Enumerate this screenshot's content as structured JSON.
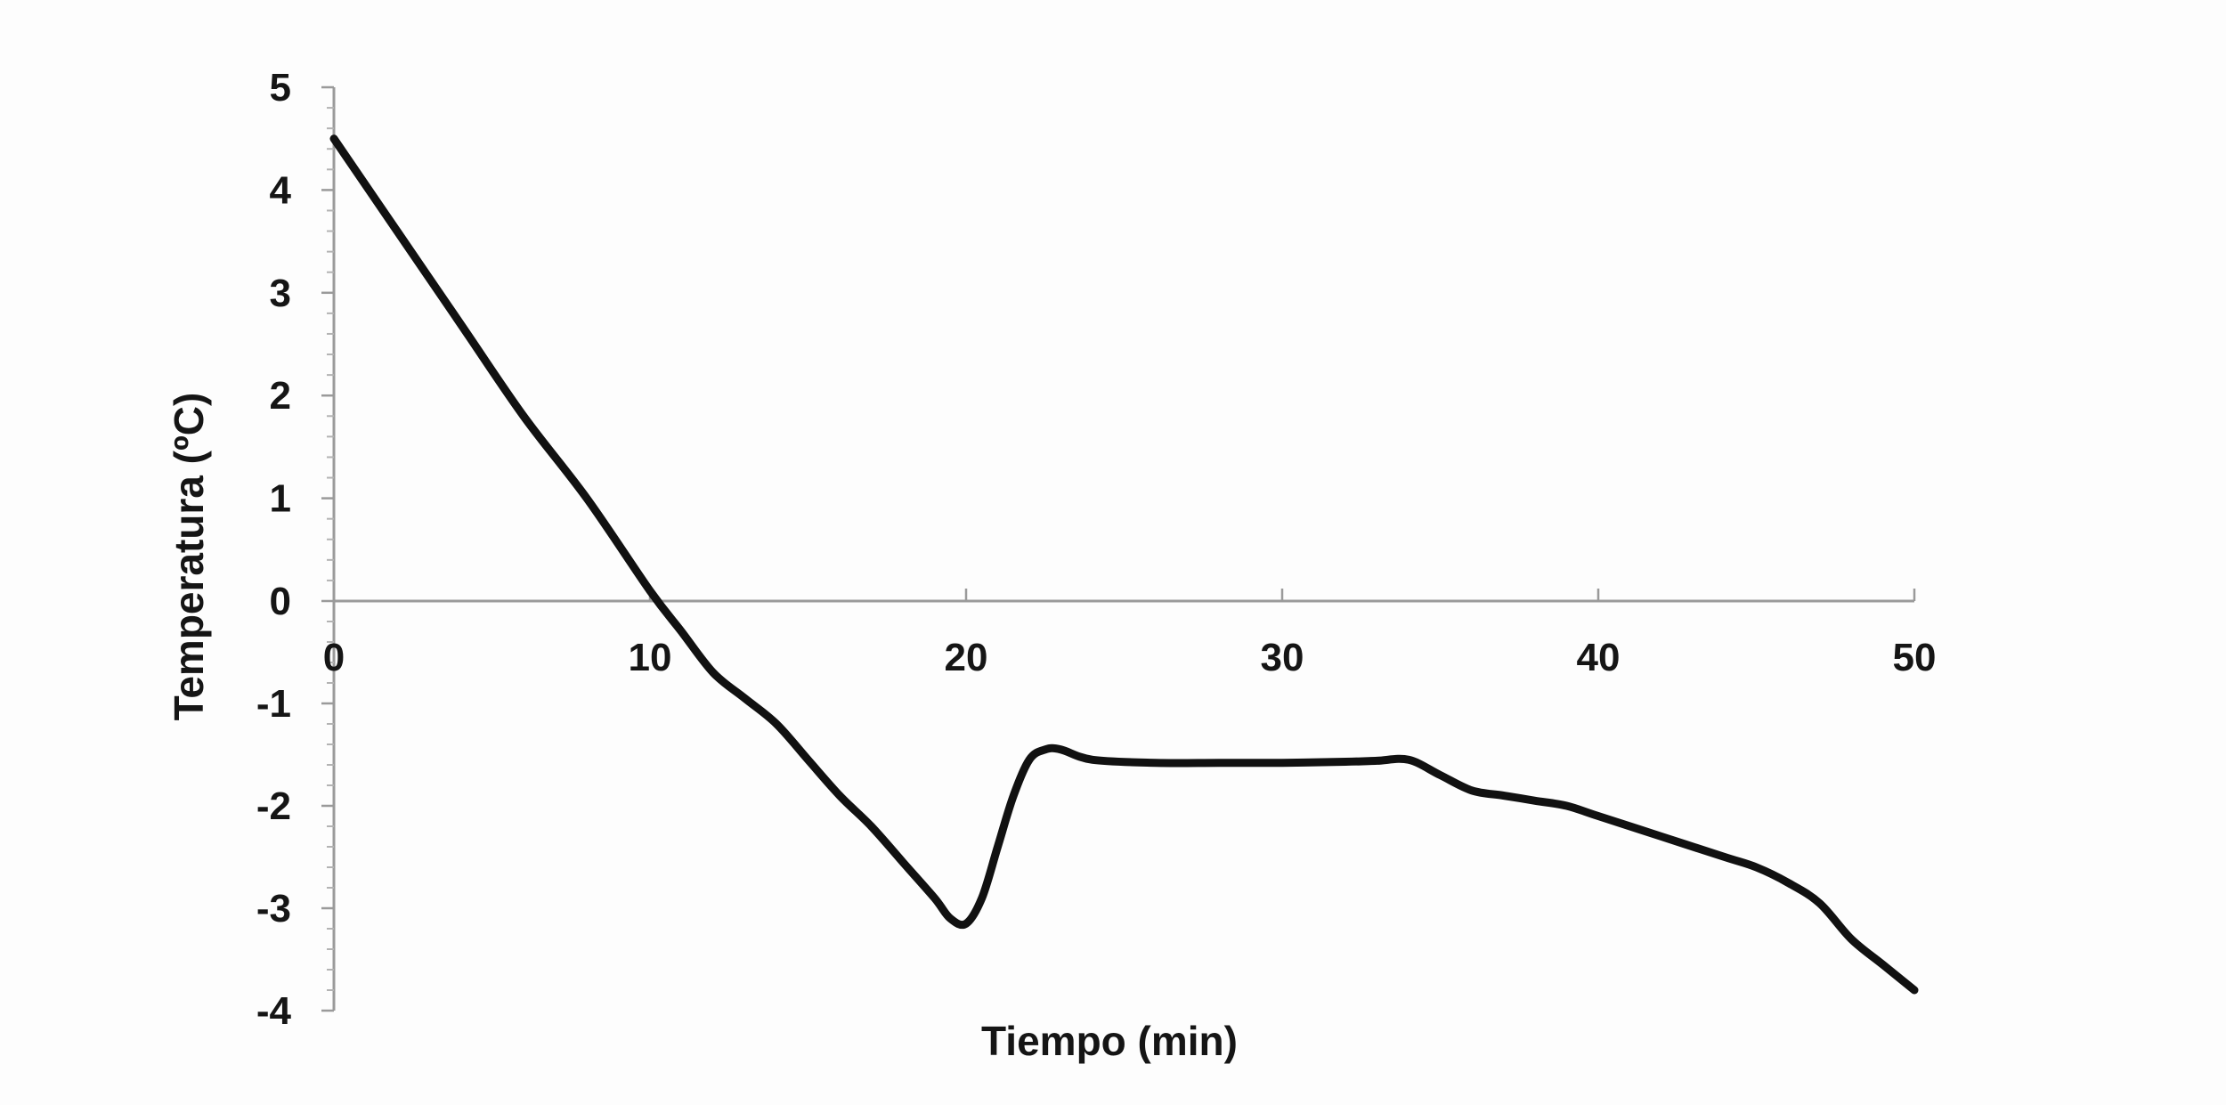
{
  "chart_data": {
    "type": "line",
    "title": "",
    "xlabel": "Tiempo (min)",
    "ylabel": "Temperatura (ºC)",
    "xlim": [
      0,
      50
    ],
    "ylim": [
      -4,
      5
    ],
    "x_ticks": [
      "0",
      "10",
      "20",
      "30",
      "40",
      "50"
    ],
    "y_ticks": [
      "5",
      "4",
      "3",
      "2",
      "1",
      "0",
      "-1",
      "-2",
      "-3",
      "-4"
    ],
    "grid": false,
    "legend": "none",
    "series": [
      {
        "color": "#111111",
        "x": [
          0,
          2,
          4,
          6,
          8,
          10,
          11,
          12,
          13,
          14,
          15,
          16,
          17,
          18,
          19,
          19.5,
          20,
          20.5,
          21,
          21.5,
          22,
          22.5,
          23,
          24,
          26,
          28,
          30,
          32,
          33,
          34,
          35,
          36,
          37,
          38,
          39,
          40,
          42,
          44,
          45,
          46,
          47,
          48,
          49,
          50
        ],
        "y": [
          4.5,
          3.6,
          2.7,
          1.8,
          1.0,
          0.1,
          -0.3,
          -0.7,
          -0.95,
          -1.2,
          -1.55,
          -1.9,
          -2.2,
          -2.55,
          -2.9,
          -3.1,
          -3.15,
          -2.9,
          -2.4,
          -1.9,
          -1.55,
          -1.45,
          -1.45,
          -1.55,
          -1.58,
          -1.58,
          -1.58,
          -1.57,
          -1.56,
          -1.55,
          -1.7,
          -1.85,
          -1.9,
          -1.95,
          -2.0,
          -2.1,
          -2.3,
          -2.5,
          -2.6,
          -2.75,
          -2.95,
          -3.3,
          -3.55,
          -3.8
        ]
      }
    ]
  }
}
